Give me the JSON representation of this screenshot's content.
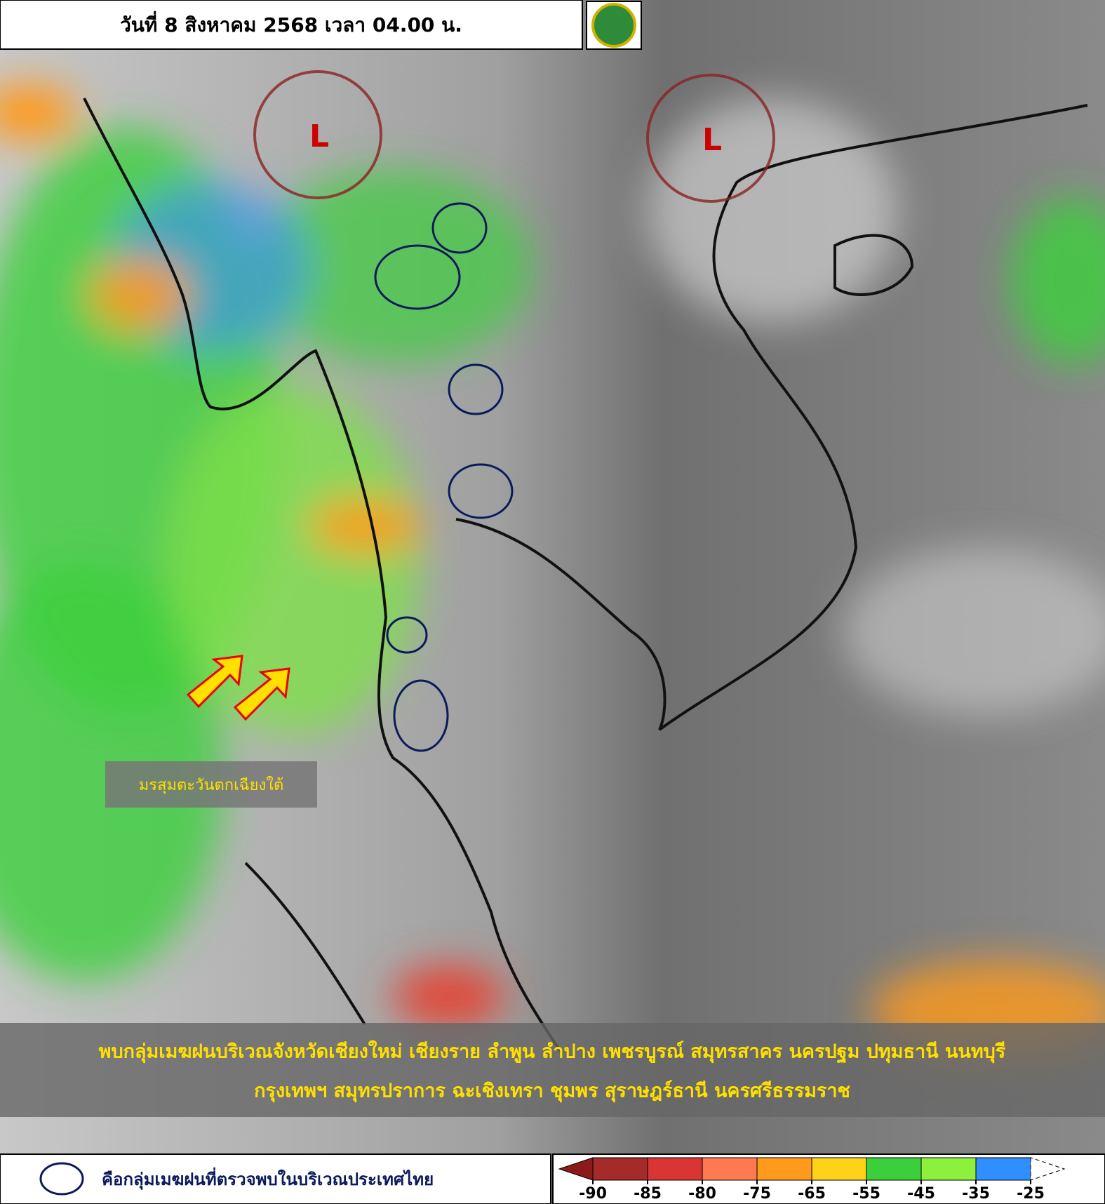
{
  "header": {
    "title": "วันที่ 8 สิงหาคม 2568 เวลา 04.00 น."
  },
  "map": {
    "low_pressure_labels": [
      "L",
      "L"
    ],
    "monsoon_label": "มรสุมตะวันตกเฉียงใต้"
  },
  "banner": {
    "lines": [
      "พบกลุ่มเมฆฝนบริเวณจังหวัดเชียงใหม่ เชียงราย ลำพูน ลำปาง เพชรบูรณ์ สมุทรสาคร นครปฐม ปทุมธานี นนทบุรี",
      "กรุงเทพฯ สมุทรปราการ ฉะเชิงเทรา ชุมพร สุราษฎร์ธานี นครศรีธรรมราช"
    ]
  },
  "legend": {
    "cloud_note": "คือกลุ่มเมฆฝนที่ตรวจพบในบริเวณประเทศไทย"
  },
  "colorbar": {
    "ticks": [
      -90,
      -85,
      -80,
      -75,
      -65,
      -55,
      -45,
      -35,
      -25
    ],
    "below_color": "#8b1a1a",
    "colors": [
      "#a52a2a",
      "#d93535",
      "#ff7a50",
      "#ff9a1a",
      "#ffd21a",
      "#3ccf3c",
      "#8cf03c",
      "#2f8fff"
    ]
  }
}
